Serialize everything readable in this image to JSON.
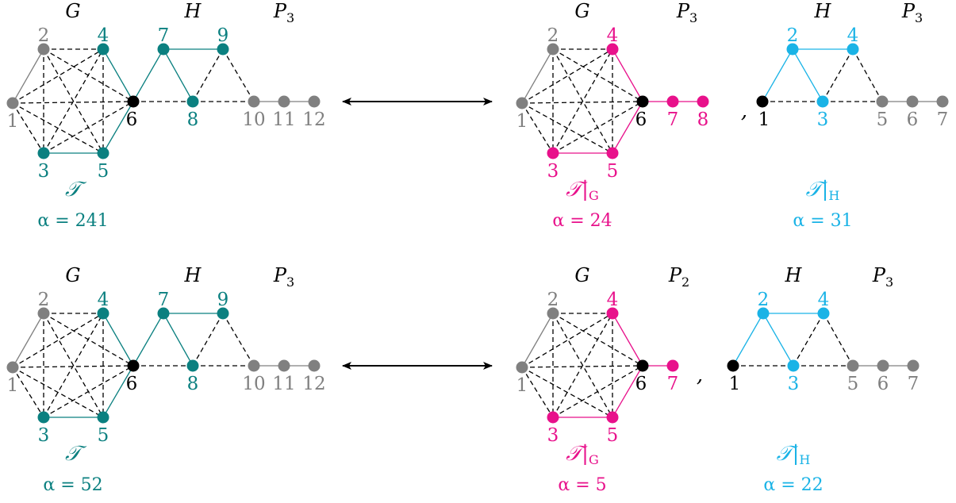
{
  "colors": {
    "teal": "#0b8080",
    "magenta": "#e8118b",
    "cyan": "#1ab3e6",
    "gray": "#808080",
    "black": "#000000"
  },
  "rows": [
    {
      "left": {
        "headers": [
          {
            "main": "G",
            "sub": ""
          },
          {
            "main": "H",
            "sub": ""
          },
          {
            "main": "P",
            "sub": "3"
          }
        ],
        "labels": [
          "1",
          "2",
          "3",
          "4",
          "5",
          "6",
          "7",
          "8",
          "9",
          "10",
          "11",
          "12"
        ],
        "caption": "𝒯",
        "alpha": "α = 241"
      },
      "rightG": {
        "headers": [
          {
            "main": "G",
            "sub": ""
          },
          {
            "main": "P",
            "sub": "3"
          }
        ],
        "labels": [
          "1",
          "2",
          "3",
          "4",
          "5",
          "6",
          "7",
          "8"
        ],
        "caption": "𝒯|",
        "caption_sub": "G",
        "alpha": "α = 24"
      },
      "comma": ",",
      "rightH": {
        "headers": [
          {
            "main": "H",
            "sub": ""
          },
          {
            "main": "P",
            "sub": "3"
          }
        ],
        "labels": [
          "1",
          "2",
          "3",
          "4",
          "5",
          "6",
          "7"
        ],
        "caption": "𝒯|",
        "caption_sub": "H",
        "alpha": "α = 31"
      }
    },
    {
      "left": {
        "headers": [
          {
            "main": "G",
            "sub": ""
          },
          {
            "main": "H",
            "sub": ""
          },
          {
            "main": "P",
            "sub": "3"
          }
        ],
        "labels": [
          "1",
          "2",
          "3",
          "4",
          "5",
          "6",
          "7",
          "8",
          "9",
          "10",
          "11",
          "12"
        ],
        "caption": "𝒯",
        "alpha": "α = 52"
      },
      "rightG": {
        "headers": [
          {
            "main": "G",
            "sub": ""
          },
          {
            "main": "P",
            "sub": "2"
          }
        ],
        "labels": [
          "1",
          "2",
          "3",
          "4",
          "5",
          "6",
          "7"
        ],
        "caption": "𝒯|",
        "caption_sub": "G",
        "alpha": "α = 5"
      },
      "comma": ",",
      "rightH": {
        "headers": [
          {
            "main": "H",
            "sub": ""
          },
          {
            "main": "P",
            "sub": "3"
          }
        ],
        "labels": [
          "1",
          "2",
          "3",
          "4",
          "5",
          "6",
          "7"
        ],
        "caption": "𝒯|",
        "caption_sub": "H",
        "alpha": "α = 22"
      }
    }
  ]
}
